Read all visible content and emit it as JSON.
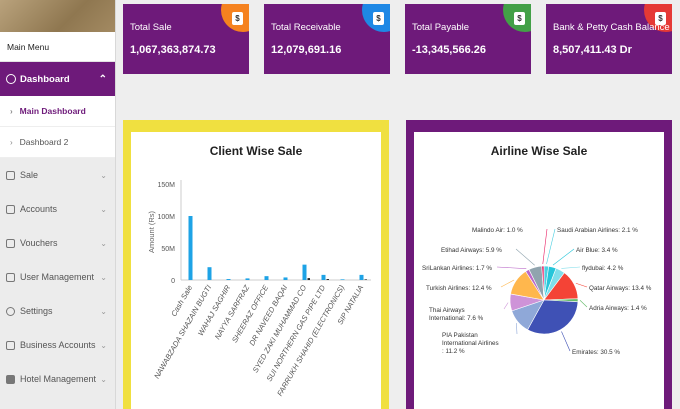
{
  "sidebar": {
    "main_menu": "Main Menu",
    "active_item": "Dashboard",
    "sub_items": [
      {
        "label": "Main Dashboard",
        "active": true
      },
      {
        "label": "Dashboard 2",
        "active": false
      }
    ],
    "items": [
      {
        "label": "Sale",
        "icon": "cart-icon"
      },
      {
        "label": "Accounts",
        "icon": "calculator-icon"
      },
      {
        "label": "Vouchers",
        "icon": "folder-icon"
      },
      {
        "label": "User Management",
        "icon": "users-icon"
      },
      {
        "label": "Settings",
        "icon": "gear-icon"
      },
      {
        "label": "Business Accounts",
        "icon": "building-icon"
      },
      {
        "label": "Hotel Management",
        "icon": "hotel-icon"
      }
    ]
  },
  "cards": [
    {
      "title": "Total Sale",
      "value": "1,067,363,874.73",
      "accent": "#f5821f"
    },
    {
      "title": "Total Receivable",
      "value": "12,079,691.16",
      "accent": "#1e88e5"
    },
    {
      "title": "Total Payable",
      "value": "-13,345,566.26",
      "accent": "#43a047"
    },
    {
      "title": "Bank & Petty Cash Balance",
      "value": "8,507,411.43  Dr",
      "accent": "#e53935"
    }
  ],
  "client_chart": {
    "title": "Client Wise Sale",
    "ylabel": "Amount (Rs)",
    "chart_data": {
      "type": "bar",
      "title": "Client Wise Sale",
      "ylabel": "Amount (Rs)",
      "ylim": [
        0,
        150000000
      ],
      "yticks": [
        "0",
        "50M",
        "100M",
        "150M"
      ],
      "categories": [
        "Cash Sale",
        "NAWABZADA SHAZAIN BUGTI",
        "WAHAJ SAGHIR",
        "NAYYA SARFRAZ",
        "SHEERAZ OFFICE",
        "DR NAVEED BAQAI",
        "SYED ZAKI MUHAMMAD CO",
        "SUI NORTHERN GAS PIPE LTD",
        "FARRUKH SHAHID (ELECTRONICS)",
        "SIP NATALIA"
      ],
      "series": [
        {
          "color": "#1ea3e6",
          "values": [
            100000000,
            20000000,
            1500000,
            2500000,
            6000000,
            4000000,
            24000000,
            8000000,
            1000000,
            8000000
          ]
        },
        {
          "color": "#2a2a2a",
          "values": [
            0,
            0,
            0,
            0,
            0,
            0,
            3000000,
            1500000,
            0,
            1000000
          ]
        }
      ]
    }
  },
  "airline_chart": {
    "title": "Airline Wise Sale",
    "chart_data": {
      "type": "pie",
      "title": "Airline Wise Sale",
      "slices": [
        {
          "label": "Saudi Arabian Airlines: 2.1 %",
          "value": 2.1,
          "color": "#4dd0e1"
        },
        {
          "label": "Air Blue: 3.4 %",
          "value": 3.4,
          "color": "#26c6da"
        },
        {
          "label": "flydubai: 4.2 %",
          "value": 4.2,
          "color": "#80deea"
        },
        {
          "label": "Qatar Airways: 13.4 %",
          "value": 13.4,
          "color": "#f44336"
        },
        {
          "label": "Adria Airways: 1.4 %",
          "value": 1.4,
          "color": "#66bb6a"
        },
        {
          "label": "Emirates: 30.5 %",
          "value": 30.5,
          "color": "#3f51b5"
        },
        {
          "label": "PIA Pakistan International Airlines : 11.2 %",
          "value": 11.2,
          "color": "#8fa8d8"
        },
        {
          "label": "Thai Airways International: 7.6 %",
          "value": 7.6,
          "color": "#ce93d8"
        },
        {
          "label": "Turkish Airlines: 12.4 %",
          "value": 12.4,
          "color": "#ffb74d"
        },
        {
          "label": "SriLankan Airlines: 1.7 %",
          "value": 1.7,
          "color": "#ba68c8"
        },
        {
          "label": "Etihad Airways: 5.9 %",
          "value": 5.9,
          "color": "#90a4ae"
        },
        {
          "label": "Malindo Air: 1.0 %",
          "value": 1.0,
          "color": "#e91e63"
        }
      ]
    }
  }
}
